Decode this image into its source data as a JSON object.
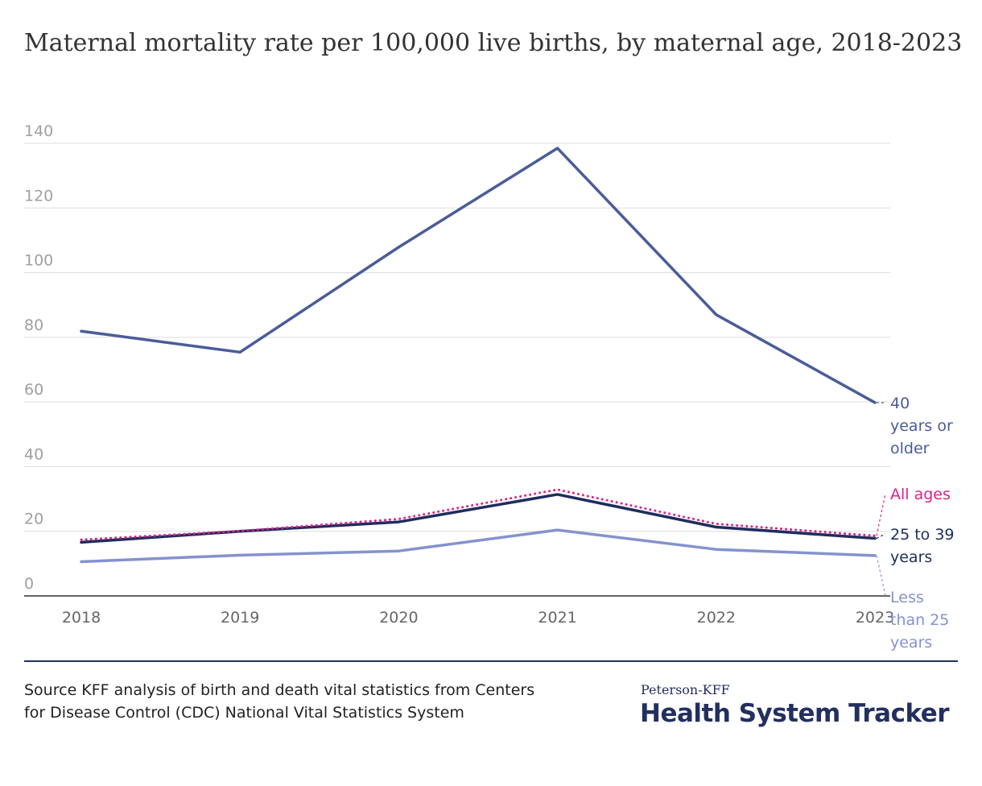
{
  "chart_data": {
    "type": "line",
    "title": "Maternal mortality rate per 100,000 live births, by maternal age, 2018-2023",
    "x": [
      "2018",
      "2019",
      "2020",
      "2021",
      "2022",
      "2023"
    ],
    "ylim": [
      0,
      140
    ],
    "yticks": [
      "0",
      "20",
      "40",
      "60",
      "80",
      "100",
      "120",
      "140"
    ],
    "grid": true,
    "legend": "inline labels at right",
    "series": [
      {
        "name": "40 years or older",
        "label_lines": [
          "40",
          "years or",
          "older"
        ],
        "values": [
          81.9,
          75.4,
          107.9,
          138.5,
          87.0,
          59.8
        ],
        "color": "#4a5c99",
        "style": "solid"
      },
      {
        "name": "All ages",
        "label_lines": [
          "All ages"
        ],
        "values": [
          17.4,
          20.1,
          23.8,
          32.9,
          22.3,
          18.6
        ],
        "color": "#e0218a",
        "style": "dotted"
      },
      {
        "name": "25 to 39 years",
        "label_lines": [
          "25 to 39",
          "years"
        ],
        "values": [
          16.6,
          20.0,
          22.9,
          31.4,
          21.3,
          17.8
        ],
        "color": "#1f2d5c",
        "style": "solid"
      },
      {
        "name": "Less than 25 years",
        "label_lines": [
          "Less",
          "than 25",
          "years"
        ],
        "values": [
          10.6,
          12.6,
          13.9,
          20.4,
          14.4,
          12.5
        ],
        "color": "#8492cf",
        "style": "solid"
      }
    ]
  },
  "footer": {
    "source": "Source KFF analysis of birth and death vital statistics from Centers for Disease Control (CDC) National Vital Statistics System",
    "brand_small": "Peterson-KFF",
    "brand_big": "Health System Tracker"
  }
}
